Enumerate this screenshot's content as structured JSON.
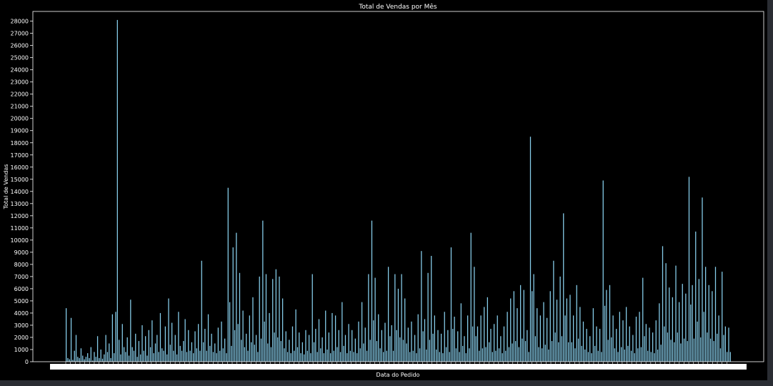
{
  "colors": {
    "background": "#000000",
    "bar": "#87ceeb",
    "axis": "#ffffff",
    "text": "#ffffff"
  },
  "chart_data": {
    "type": "bar",
    "title": "Total de Vendas por Mês",
    "xlabel": "Data do Pedido",
    "ylabel": "Total de Vendas",
    "ylim": [
      0,
      28800
    ],
    "yticks": [
      0,
      1000,
      2000,
      3000,
      4000,
      5000,
      6000,
      7000,
      8000,
      9000,
      10000,
      11000,
      12000,
      13000,
      14000,
      15000,
      16000,
      17000,
      18000,
      19000,
      20000,
      21000,
      22000,
      23000,
      24000,
      25000,
      26000,
      27000,
      28000
    ],
    "grid": false,
    "x_tick_labels_note": "overlapping illegible date labels",
    "approx_bar_count": 560,
    "series": [
      {
        "values": [
          4400,
          300,
          200,
          3600,
          150,
          900,
          2200,
          400,
          300,
          1100,
          500,
          200,
          400,
          700,
          300,
          1200,
          100,
          800,
          400,
          2100,
          300,
          1000,
          250,
          600,
          2200,
          800,
          1500,
          300,
          3900,
          700,
          4100,
          28100,
          1800,
          600,
          3100,
          1200,
          800,
          2000,
          500,
          5100,
          1200,
          900,
          2300,
          400,
          1700,
          600,
          3000,
          900,
          2100,
          500,
          2600,
          1200,
          3400,
          700,
          1500,
          2200,
          800,
          4000,
          1100,
          900,
          2900,
          600,
          5200,
          1400,
          3200,
          900,
          2200,
          600,
          4100,
          1300,
          900,
          1700,
          3500,
          800,
          2600,
          900,
          1600,
          700,
          2500,
          1100,
          3100,
          900,
          8300,
          1600,
          2700,
          900,
          3900,
          1300,
          2300,
          800,
          1500,
          700,
          2800,
          900,
          3300,
          1100,
          1900,
          700,
          14300,
          4900,
          1300,
          9400,
          2600,
          10600,
          3100,
          7300,
          1800,
          4200,
          1200,
          2300,
          900,
          3800,
          1600,
          5300,
          1400,
          2200,
          800,
          7000,
          1900,
          11600,
          3300,
          7200,
          1500,
          4000,
          1200,
          6800,
          2400,
          7600,
          2000,
          7000,
          1700,
          5200,
          1100,
          2500,
          800,
          1800,
          700,
          2900,
          900,
          4300,
          1200,
          2400,
          700,
          1600,
          600,
          2600,
          900,
          2200,
          700,
          7200,
          1600,
          2700,
          800,
          3500,
          1100,
          2000,
          700,
          4200,
          1000,
          2400,
          700,
          4000,
          900,
          3800,
          1200,
          2600,
          800,
          4900,
          1300,
          2200,
          700,
          3100,
          900,
          2600,
          800,
          1900,
          700,
          3300,
          1100,
          4900,
          1500,
          2800,
          900,
          7200,
          1800,
          11600,
          3400,
          6900,
          1700,
          3900,
          1100,
          2600,
          800,
          3200,
          900,
          7800,
          2100,
          3000,
          900,
          7200,
          2600,
          6000,
          2000,
          7200,
          1800,
          5200,
          1500,
          2800,
          800,
          3300,
          900,
          2200,
          700,
          3900,
          1100,
          9100,
          2500,
          3500,
          1000,
          7300,
          1800,
          8700,
          2300,
          3800,
          1000,
          2600,
          800,
          2300,
          700,
          4100,
          1200,
          2600,
          800,
          9400,
          2700,
          3700,
          1100,
          2500,
          800,
          4800,
          1300,
          2100,
          700,
          3800,
          1100,
          10600,
          2900,
          7800,
          2100,
          2900,
          900,
          3800,
          1100,
          4500,
          1200,
          5300,
          1600,
          2700,
          800,
          3100,
          900,
          3800,
          1100,
          2100,
          700,
          2900,
          900,
          4100,
          1200,
          5200,
          1500,
          5800,
          1700,
          4400,
          1200,
          6300,
          1900,
          5900,
          1700,
          2600,
          800,
          18500,
          5800,
          7200,
          2100,
          4400,
          1200,
          3800,
          1100,
          4900,
          1400,
          3600,
          1000,
          5800,
          1700,
          8300,
          2400,
          5100,
          1600,
          7000,
          2100,
          12200,
          3800,
          5200,
          1600,
          5500,
          1600,
          3800,
          1100,
          6300,
          1900,
          4500,
          1300,
          3300,
          1000,
          2700,
          800,
          2100,
          700,
          4400,
          1300,
          2900,
          900,
          2700,
          800,
          14900,
          4600,
          5900,
          1800,
          6300,
          2000,
          3800,
          1100,
          2700,
          800,
          4100,
          1200,
          3400,
          1000,
          4500,
          1300,
          2900,
          900,
          2200,
          700,
          3700,
          1100,
          4100,
          1200,
          6900,
          2100,
          3100,
          900,
          2800,
          800,
          2400,
          700,
          3400,
          1000,
          4800,
          1400,
          9500,
          2900,
          8100,
          2400,
          6100,
          1800,
          5300,
          1600,
          7900,
          2400,
          4900,
          1500,
          6400,
          1900,
          5600,
          1700,
          15200,
          4700,
          6300,
          1900,
          10700,
          3300,
          6800,
          2000,
          13500,
          4100,
          7800,
          2400,
          6300,
          1900,
          5800,
          1700,
          7800,
          2300,
          3800,
          1100,
          7400,
          2200,
          2900,
          800,
          2800,
          800
        ]
      }
    ]
  }
}
